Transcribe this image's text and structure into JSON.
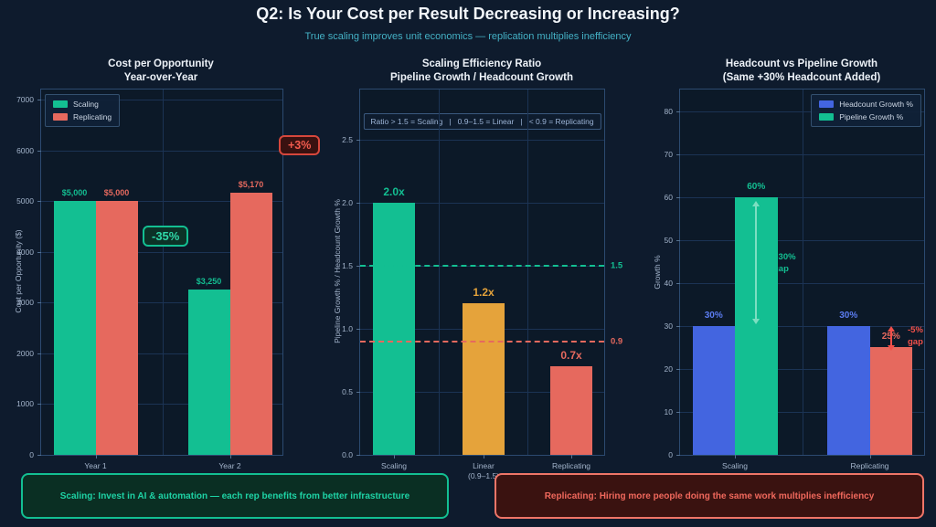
{
  "header": {
    "title": "Q2: Is Your Cost per Result Decreasing or Increasing?",
    "subtitle": "True scaling improves unit economics — replication multiplies inefficiency"
  },
  "chart_data": [
    {
      "type": "bar",
      "title": "Cost per Opportunity\nYear-over-Year",
      "ylabel": "Cost per Opportunity ($)",
      "ylim": [
        0,
        7200
      ],
      "yticks": [
        0,
        1000,
        2000,
        3000,
        4000,
        5000,
        6000,
        7000
      ],
      "ytick_decimals": 0,
      "categories": [
        "Year 1",
        "Year 2"
      ],
      "series": [
        {
          "name": "Scaling",
          "color": "#13bf92",
          "values": [
            5000,
            3250
          ],
          "labels": [
            "$5,000",
            "$3,250"
          ]
        },
        {
          "name": "Replicating",
          "color": "#e6695e",
          "values": [
            5000,
            5170
          ],
          "labels": [
            "$5,000",
            "$5,170"
          ]
        }
      ],
      "annotations": [
        {
          "text": "-35%"
        },
        {
          "text": "+3%"
        }
      ],
      "legend_position": "top-left",
      "grid": true
    },
    {
      "type": "bar",
      "title": "Scaling Efficiency Ratio\nPipeline Growth / Headcount Growth",
      "ylabel": "Pipeline Growth %  /  Headcount Growth %",
      "note": "Ratio > 1.5 = Scaling   |   0.9–1.5 = Linear   |   < 0.9 = Replicating",
      "ylim": [
        0,
        2.9
      ],
      "yticks": [
        0,
        0.5,
        1,
        1.5,
        2,
        2.5
      ],
      "ytick_decimals": 1,
      "categories": [
        "Scaling\n(>1.5)",
        "Linear\n(0.9–1.5)",
        "Replicating\n(<0.9)"
      ],
      "values": [
        2.0,
        1.2,
        0.7
      ],
      "bar_colors": [
        "#13bf92",
        "#e5a33b",
        "#e6695e"
      ],
      "bar_labels": [
        "2.0x",
        "1.2x",
        "0.7x"
      ],
      "thresholds": [
        {
          "value": 1.5,
          "label": "1.5",
          "color": "#13bf92"
        },
        {
          "value": 0.9,
          "label": "0.9",
          "color": "#e6695e"
        }
      ],
      "grid": true
    },
    {
      "type": "bar",
      "title": "Headcount vs Pipeline Growth\n(Same +30% Headcount Added)",
      "ylabel": "Growth %",
      "ylim": [
        0,
        85
      ],
      "yticks": [
        0,
        10,
        20,
        30,
        40,
        50,
        60,
        70,
        80
      ],
      "ytick_decimals": 0,
      "categories": [
        "Scaling",
        "Replicating"
      ],
      "series": [
        {
          "name": "Headcount Growth %",
          "color": "#4365e0",
          "label_color": "#5b7cf0",
          "values": [
            30,
            30
          ],
          "labels": [
            "30%",
            "30%"
          ]
        },
        {
          "name": "Pipeline Growth %",
          "color": "#13bf92",
          "values": [
            60,
            25
          ],
          "labels": [
            "60%",
            "25%"
          ],
          "bar_colors": [
            "#13bf92",
            "#e6695e"
          ],
          "label_colors": [
            "#13bf92",
            "#e6695e"
          ]
        }
      ],
      "gap_annotations": [
        {
          "text": "+30%\ngap"
        },
        {
          "text": "-5%\ngap"
        }
      ],
      "legend_position": "top-right",
      "grid": true
    }
  ],
  "callouts": {
    "scaling": "Scaling: Invest in AI & automation — each rep benefits from better infrastructure",
    "replicating": "Replicating: Hiring more people doing the same work multiplies inefficiency"
  }
}
